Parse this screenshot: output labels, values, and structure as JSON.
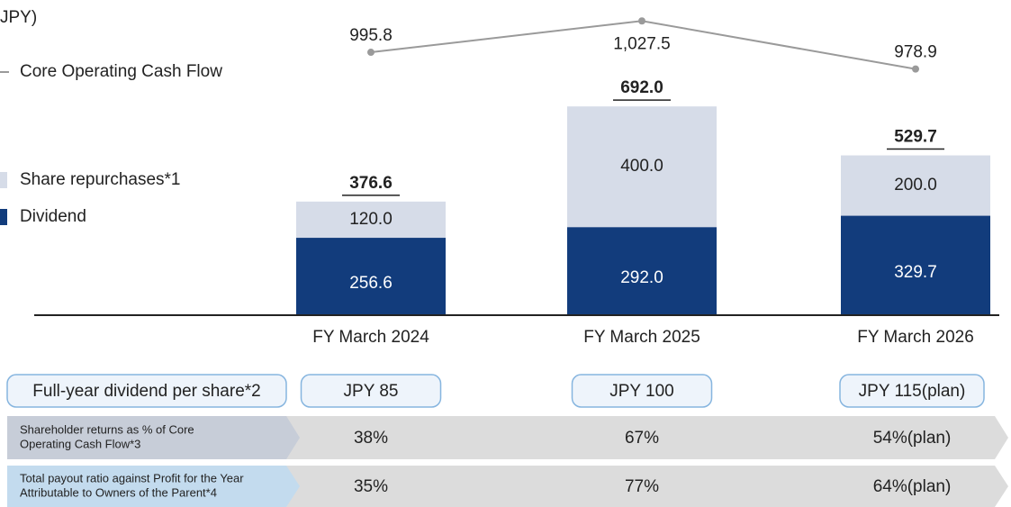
{
  "chart_data": {
    "type": "bar",
    "unit_label": "JPY)",
    "categories": [
      "FY March 2024",
      "FY March 2025",
      "FY March 2026"
    ],
    "series": [
      {
        "name": "Dividend",
        "color": "#123c7c",
        "values": [
          256.6,
          292.0,
          329.7
        ],
        "value_labels": [
          "256.6",
          "292.0",
          "329.7"
        ]
      },
      {
        "name": "Share repurchases*1",
        "color": "#d6dce8",
        "values": [
          120.0,
          400.0,
          200.0
        ],
        "value_labels": [
          "120.0",
          "400.0",
          "200.0"
        ]
      },
      {
        "name": "Core Operating Cash Flow",
        "color": "#9a9a9a",
        "type": "line",
        "axis": "y2",
        "values": [
          995.8,
          1027.5,
          978.9
        ],
        "value_labels": [
          "995.8",
          "1,027.5",
          "978.9"
        ]
      }
    ],
    "totals": [
      376.6,
      692.0,
      529.7
    ],
    "total_labels": [
      "376.6",
      "692.0",
      "529.7"
    ],
    "ylim": [
      0,
      1000
    ],
    "y2lim": [
      730,
      1035
    ]
  },
  "table": {
    "rows": [
      {
        "label": [
          "Full-year dividend per share*2"
        ],
        "cells": [
          "JPY 85",
          "JPY 100",
          "JPY 115(plan)"
        ]
      },
      {
        "label": [
          "Shareholder returns as % of Core",
          "Operating Cash Flow*3"
        ],
        "cells": [
          "38%",
          "67%",
          "54%(plan)"
        ]
      },
      {
        "label": [
          "Total payout ratio against Profit for the Year",
          "Attributable to Owners of the Parent*4"
        ],
        "cells": [
          "35%",
          "77%",
          "64%(plan)"
        ]
      }
    ]
  }
}
